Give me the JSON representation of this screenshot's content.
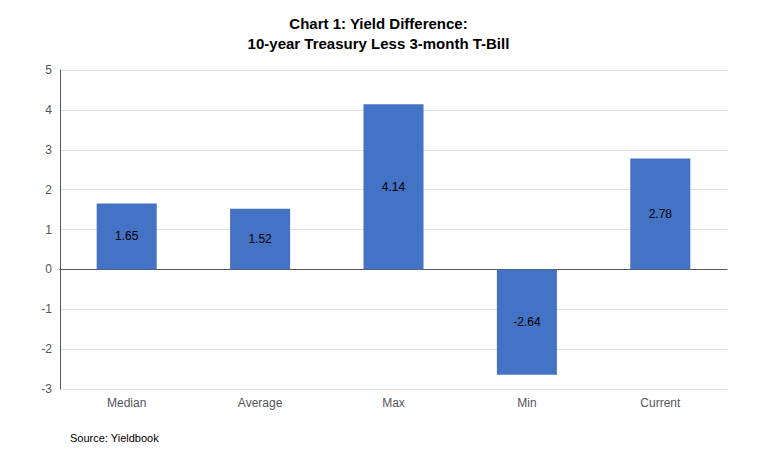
{
  "chart_data": {
    "type": "bar",
    "title": "Chart 1: Yield Difference:\n10-year Treasury Less 3-month T-Bill",
    "categories": [
      "Median",
      "Average",
      "Max",
      "Min",
      "Current"
    ],
    "values": [
      1.65,
      1.52,
      4.14,
      -2.64,
      2.78
    ],
    "color": "#4472C4",
    "ylim": [
      -3,
      5
    ],
    "yticks": [
      -3,
      -2,
      -1,
      0,
      1,
      2,
      3,
      4,
      5
    ],
    "grid": true,
    "data_labels": true,
    "annotations": [
      "Source: Yieldbook"
    ]
  }
}
